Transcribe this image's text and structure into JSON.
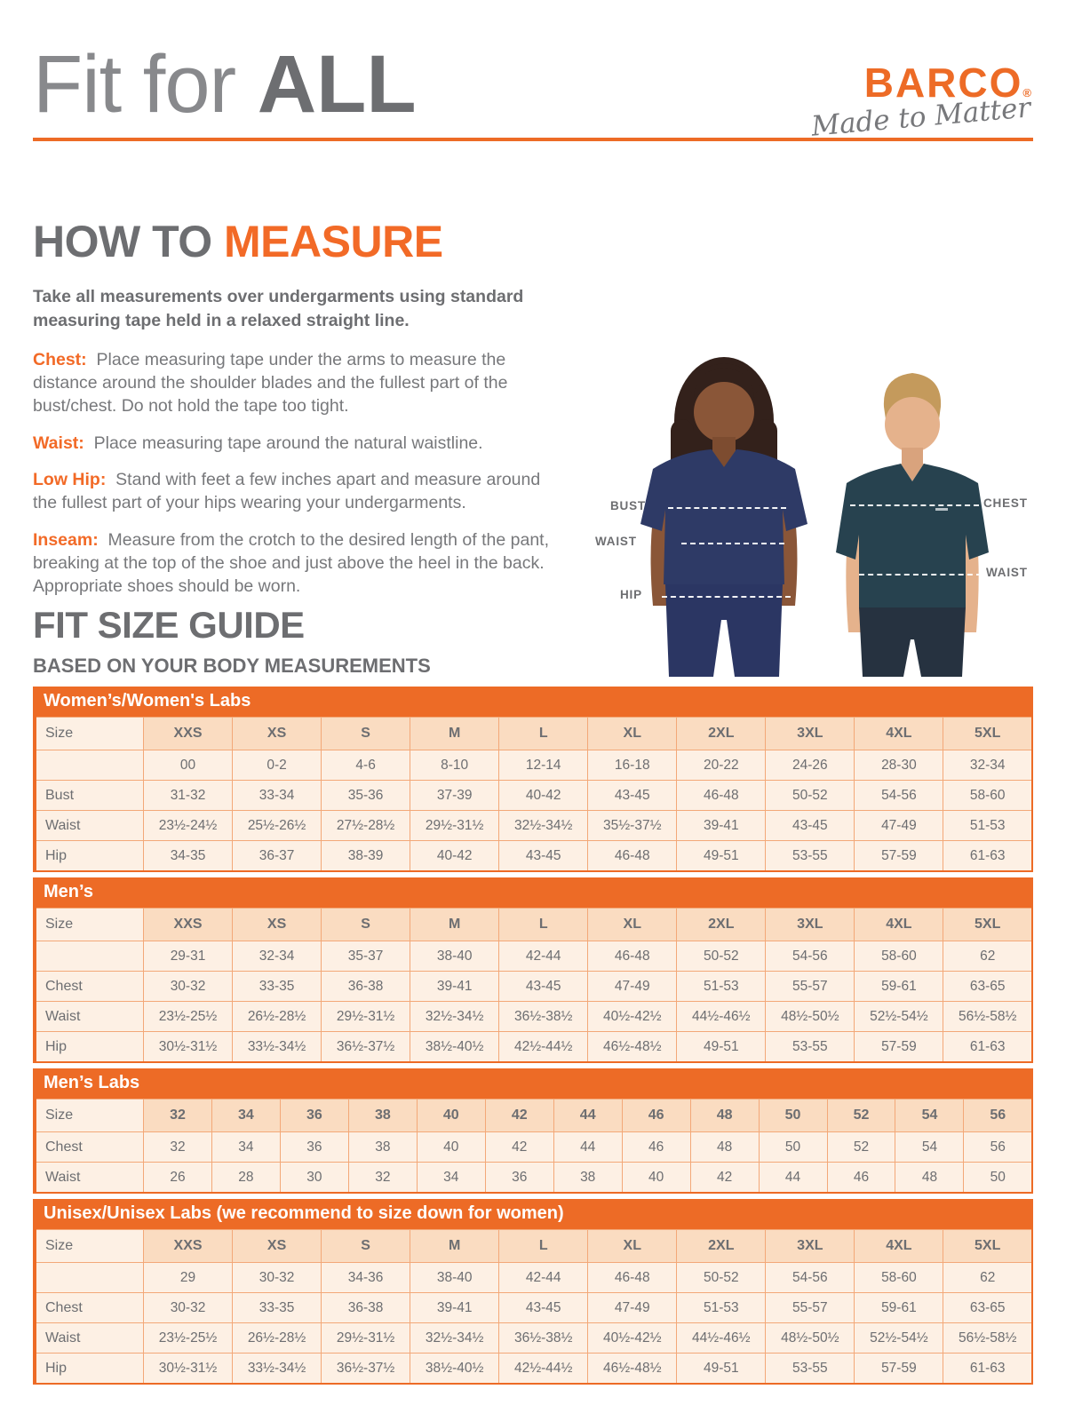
{
  "page": {
    "title_light": "Fit for ",
    "title_bold": "ALL"
  },
  "brand": {
    "name": "BARCO",
    "registered": "®",
    "tagline": "Made to Matter"
  },
  "how_to_measure": {
    "heading_gray": "HOW TO ",
    "heading_accent": "MEASURE",
    "intro": "Take all measurements over undergarments using standard measuring tape held in a relaxed straight line.",
    "items": [
      {
        "label": "Chest:",
        "text": "Place measuring tape under the arms to measure the distance around the shoulder blades and the fullest part of the bust/chest. Do not hold the tape too tight."
      },
      {
        "label": "Waist:",
        "text": "Place measuring tape around the natural waistline."
      },
      {
        "label": "Low Hip:",
        "text": "Stand with feet a few inches apart and measure around the fullest part of your hips wearing your undergarments."
      },
      {
        "label": "Inseam:",
        "text": "Measure from the crotch to the desired length of the pant, breaking at the top of the shoe and just above the heel in the back. Appropriate shoes should be worn."
      }
    ]
  },
  "figure": {
    "left_labels": {
      "bust": "BUST",
      "waist": "WAIST",
      "hip": "HIP"
    },
    "right_labels": {
      "chest": "CHEST",
      "waist": "WAIST"
    }
  },
  "size_guide": {
    "heading": "FIT SIZE GUIDE",
    "subheading": "BASED ON YOUR BODY MEASUREMENTS",
    "tables": [
      {
        "band": "Women’s/Women's Labs",
        "corner": "Size",
        "size_row": [
          "XXS",
          "XS",
          "S",
          "M",
          "L",
          "XL",
          "2XL",
          "3XL",
          "4XL",
          "5XL"
        ],
        "numeric_row": [
          "00",
          "0-2",
          "4-6",
          "8-10",
          "12-14",
          "16-18",
          "20-22",
          "24-26",
          "28-30",
          "32-34"
        ],
        "rows": [
          {
            "label": "Bust",
            "values": [
              "31-32",
              "33-34",
              "35-36",
              "37-39",
              "40-42",
              "43-45",
              "46-48",
              "50-52",
              "54-56",
              "58-60"
            ]
          },
          {
            "label": "Waist",
            "values": [
              "23½-24½",
              "25½-26½",
              "27½-28½",
              "29½-31½",
              "32½-34½",
              "35½-37½",
              "39-41",
              "43-45",
              "47-49",
              "51-53"
            ]
          },
          {
            "label": "Hip",
            "values": [
              "34-35",
              "36-37",
              "38-39",
              "40-42",
              "43-45",
              "46-48",
              "49-51",
              "53-55",
              "57-59",
              "61-63"
            ]
          }
        ]
      },
      {
        "band": "Men’s",
        "corner": "Size",
        "size_row": [
          "XXS",
          "XS",
          "S",
          "M",
          "L",
          "XL",
          "2XL",
          "3XL",
          "4XL",
          "5XL"
        ],
        "numeric_row": [
          "29-31",
          "32-34",
          "35-37",
          "38-40",
          "42-44",
          "46-48",
          "50-52",
          "54-56",
          "58-60",
          "62"
        ],
        "rows": [
          {
            "label": "Chest",
            "values": [
              "30-32",
              "33-35",
              "36-38",
              "39-41",
              "43-45",
              "47-49",
              "51-53",
              "55-57",
              "59-61",
              "63-65"
            ]
          },
          {
            "label": "Waist",
            "values": [
              "23½-25½",
              "26½-28½",
              "29½-31½",
              "32½-34½",
              "36½-38½",
              "40½-42½",
              "44½-46½",
              "48½-50½",
              "52½-54½",
              "56½-58½"
            ]
          },
          {
            "label": "Hip",
            "values": [
              "30½-31½",
              "33½-34½",
              "36½-37½",
              "38½-40½",
              "42½-44½",
              "46½-48½",
              "49-51",
              "53-55",
              "57-59",
              "61-63"
            ]
          }
        ]
      },
      {
        "band": "Men’s Labs",
        "corner": "Size",
        "size_row": [
          "32",
          "34",
          "36",
          "38",
          "40",
          "42",
          "44",
          "46",
          "48",
          "50",
          "52",
          "54",
          "56"
        ],
        "rows": [
          {
            "label": "Chest",
            "values": [
              "32",
              "34",
              "36",
              "38",
              "40",
              "42",
              "44",
              "46",
              "48",
              "50",
              "52",
              "54",
              "56"
            ]
          },
          {
            "label": "Waist",
            "values": [
              "26",
              "28",
              "30",
              "32",
              "34",
              "36",
              "38",
              "40",
              "42",
              "44",
              "46",
              "48",
              "50"
            ]
          }
        ]
      },
      {
        "band": "Unisex/Unisex Labs (we recommend to size down for women)",
        "corner": "Size",
        "size_row": [
          "XXS",
          "XS",
          "S",
          "M",
          "L",
          "XL",
          "2XL",
          "3XL",
          "4XL",
          "5XL"
        ],
        "numeric_row": [
          "29",
          "30-32",
          "34-36",
          "38-40",
          "42-44",
          "46-48",
          "50-52",
          "54-56",
          "58-60",
          "62"
        ],
        "rows": [
          {
            "label": "Chest",
            "values": [
              "30-32",
              "33-35",
              "36-38",
              "39-41",
              "43-45",
              "47-49",
              "51-53",
              "55-57",
              "59-61",
              "63-65"
            ]
          },
          {
            "label": "Waist",
            "values": [
              "23½-25½",
              "26½-28½",
              "29½-31½",
              "32½-34½",
              "36½-38½",
              "40½-42½",
              "44½-46½",
              "48½-50½",
              "52½-54½",
              "56½-58½"
            ]
          },
          {
            "label": "Hip",
            "values": [
              "30½-31½",
              "33½-34½",
              "36½-37½",
              "38½-40½",
              "42½-44½",
              "46½-48½",
              "49-51",
              "53-55",
              "57-59",
              "61-63"
            ]
          }
        ]
      }
    ]
  },
  "colors": {
    "accent_orange": "#ED6B26",
    "heading_gray": "#6D6E71",
    "body_gray": "#77787B",
    "band_text": "#FFFFFF",
    "table_header_bg": "#FADCC1",
    "table_row_bg": "#FDF0E4",
    "table_border": "#F3A878",
    "woman_scrub_navy": "#2E3A66",
    "man_scrub_teal": "#27424F"
  }
}
